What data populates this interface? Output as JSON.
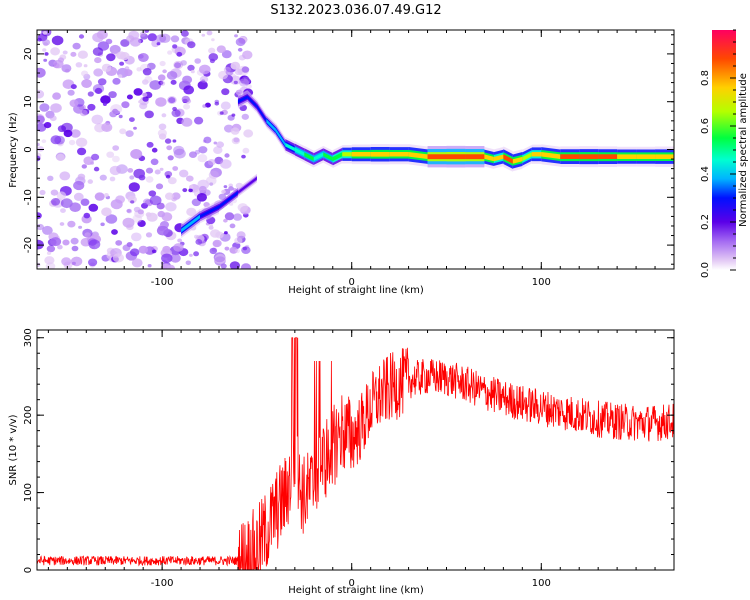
{
  "title": "S132.2023.036.07.49.G12",
  "chart_data": [
    {
      "type": "heatmap",
      "xlabel": "Height of straight line (km)",
      "ylabel": "Frequency (Hz)",
      "xlim": [
        -166,
        170
      ],
      "ylim": [
        -25,
        25
      ],
      "x_ticks": [
        -100,
        0,
        100
      ],
      "y_ticks": [
        -20,
        -10,
        0,
        10,
        20
      ],
      "grid": false,
      "colorbar": {
        "label": "Normalized spectral amplitude",
        "range": [
          0,
          1
        ],
        "ticks": [
          0.0,
          0.2,
          0.4,
          0.6,
          0.8
        ],
        "colors": [
          "#ffffff",
          "#e3c9f5",
          "#a46af2",
          "#5b00e8",
          "#0010ff",
          "#00b4ff",
          "#00ffd0",
          "#00ff40",
          "#b4ff00",
          "#ffd000",
          "#ff4800",
          "#ff0060"
        ]
      },
      "ridge": {
        "x": [
          -60,
          -55,
          -50,
          -45,
          -40,
          -35,
          -30,
          -25,
          -20,
          -15,
          -10,
          -5,
          0,
          10,
          20,
          30,
          40,
          50,
          60,
          70,
          75,
          80,
          85,
          90,
          95,
          100,
          110,
          120,
          130,
          140,
          150,
          160,
          170
        ],
        "y": [
          10,
          11,
          9,
          6,
          4,
          1,
          0,
          -1,
          -2,
          -1,
          -2,
          -1,
          -1,
          -1,
          -1,
          -1,
          -1.5,
          -1.5,
          -1.5,
          -1.5,
          -2,
          -1.5,
          -2.5,
          -2,
          -1,
          -1,
          -1.5,
          -1.5,
          -1.5,
          -1.5,
          -1.5,
          -1.5,
          -1.5
        ],
        "amp": [
          0.4,
          0.35,
          0.35,
          0.4,
          0.45,
          0.5,
          0.55,
          0.6,
          0.6,
          0.55,
          0.65,
          0.7,
          0.75,
          0.85,
          0.85,
          0.8,
          0.9,
          0.95,
          0.95,
          0.9,
          0.7,
          0.85,
          0.9,
          0.7,
          0.75,
          0.8,
          0.85,
          0.9,
          0.9,
          0.85,
          0.8,
          0.85,
          0.85
        ]
      },
      "mirror_branch": {
        "x": [
          -90,
          -80,
          -70,
          -60,
          -50
        ],
        "y": [
          -17,
          -14,
          -12,
          -9,
          -6
        ],
        "amp": [
          0.5,
          0.45,
          0.35,
          0.3,
          0.25
        ]
      },
      "noise_region_xmax": -60
    },
    {
      "type": "line",
      "xlabel": "Height of straight line (km)",
      "ylabel": "SNR (10 * v/v)",
      "xlim": [
        -166,
        170
      ],
      "ylim": [
        0,
        310
      ],
      "x_ticks": [
        -100,
        0,
        100
      ],
      "y_ticks": [
        0,
        100,
        200,
        300
      ],
      "grid": false,
      "color": "#ff0000",
      "series": [
        {
          "x": [
            -166,
            -150,
            -120,
            -100,
            -80,
            -60,
            -55,
            -50,
            -45,
            -40,
            -35,
            -32,
            -30,
            -28,
            -25,
            -20,
            -15,
            -10,
            -5,
            0,
            5,
            10,
            15,
            20,
            25,
            30,
            40,
            50,
            60,
            70,
            80,
            90,
            100,
            110,
            120,
            130,
            140,
            150,
            160,
            170
          ],
          "y": [
            12,
            12,
            12,
            12,
            12,
            12,
            18,
            28,
            50,
            75,
            95,
            120,
            150,
            110,
            95,
            110,
            140,
            160,
            180,
            170,
            185,
            210,
            225,
            235,
            240,
            245,
            250,
            248,
            240,
            230,
            222,
            215,
            210,
            205,
            200,
            195,
            192,
            190,
            190,
            192
          ]
        }
      ]
    }
  ]
}
